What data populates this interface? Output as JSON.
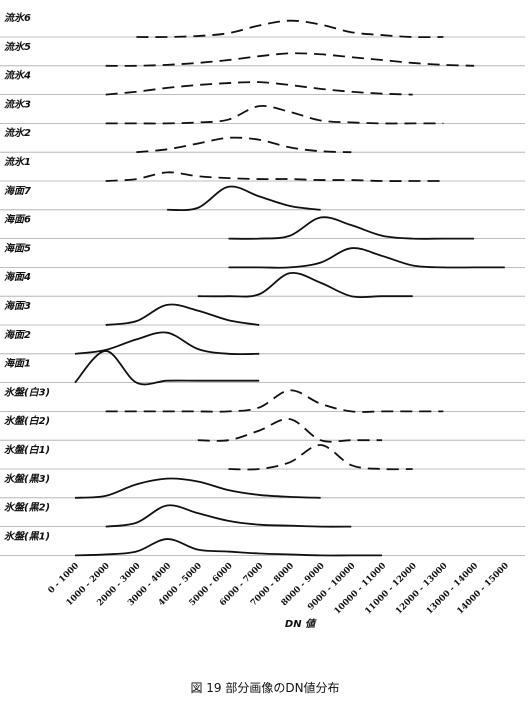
{
  "chart_data": {
    "type": "ridgeline",
    "categories": [
      "0 - 1000",
      "1000 - 2000",
      "2000 - 3000",
      "3000 - 4000",
      "4000 - 5000",
      "5000 - 6000",
      "6000 - 7000",
      "7000 - 8000",
      "8000 - 9000",
      "9000 - 10000",
      "10000 - 11000",
      "11000 - 12000",
      "12000 - 13000",
      "13000 - 14000",
      "14000 - 15000"
    ],
    "x_label": "DN 値",
    "caption": "図 19 部分画像のDN値分布",
    "ylim": [
      0,
      30
    ],
    "series": [
      {
        "name": "流氷6",
        "color": "#111111",
        "style": "dashed",
        "values": [
          null,
          null,
          0,
          0,
          1,
          4,
          12,
          17,
          13,
          5,
          2,
          0,
          0,
          null,
          null
        ]
      },
      {
        "name": "流氷5",
        "color": "#111111",
        "style": "dashed",
        "values": [
          null,
          0,
          0,
          1,
          3,
          6,
          10,
          13,
          12,
          9,
          6,
          3,
          1,
          0,
          null
        ]
      },
      {
        "name": "流氷4",
        "color": "#111111",
        "style": "dashed",
        "values": [
          null,
          0,
          3,
          7,
          10,
          12,
          13,
          10,
          6,
          3,
          1,
          0,
          null,
          null,
          null
        ]
      },
      {
        "name": "流氷3",
        "color": "#111111",
        "style": "dashed",
        "values": [
          null,
          0,
          0,
          0,
          1,
          4,
          18,
          12,
          3,
          1,
          0,
          0,
          0,
          null,
          null
        ]
      },
      {
        "name": "流氷2",
        "color": "#111111",
        "style": "dashed",
        "values": [
          null,
          null,
          0,
          3,
          9,
          15,
          13,
          5,
          1,
          0,
          null,
          null,
          null,
          null,
          null
        ]
      },
      {
        "name": "流氷1",
        "color": "#111111",
        "style": "dashed",
        "values": [
          null,
          0,
          2,
          9,
          5,
          3,
          2,
          2,
          1,
          1,
          0,
          0,
          0,
          null,
          null
        ]
      },
      {
        "name": "海面7",
        "color": "#111111",
        "style": "solid",
        "values": [
          null,
          null,
          null,
          0,
          2,
          24,
          14,
          4,
          0,
          null,
          null,
          null,
          null,
          null,
          null
        ]
      },
      {
        "name": "海面6",
        "color": "#111111",
        "style": "solid",
        "values": [
          null,
          null,
          null,
          null,
          null,
          0,
          0,
          3,
          22,
          14,
          3,
          0,
          0,
          0,
          null
        ]
      },
      {
        "name": "海面5",
        "color": "#111111",
        "style": "solid",
        "values": [
          null,
          null,
          null,
          null,
          null,
          0,
          0,
          0,
          5,
          20,
          12,
          2,
          0,
          0,
          0
        ]
      },
      {
        "name": "海面4",
        "color": "#111111",
        "style": "solid",
        "values": [
          null,
          null,
          null,
          null,
          0,
          0,
          2,
          24,
          14,
          0,
          0,
          0,
          null,
          null,
          null
        ]
      },
      {
        "name": "海面3",
        "color": "#111111",
        "style": "solid",
        "values": [
          null,
          0,
          4,
          21,
          15,
          5,
          0,
          null,
          null,
          null,
          null,
          null,
          null,
          null,
          null
        ]
      },
      {
        "name": "海面2",
        "color": "#111111",
        "style": "solid",
        "values": [
          0,
          4,
          15,
          22,
          5,
          0,
          0,
          null,
          null,
          null,
          null,
          null,
          null,
          null,
          null
        ]
      },
      {
        "name": "海面1",
        "color": "#111111",
        "style": "solid",
        "values": [
          0,
          33,
          0,
          2,
          2,
          2,
          2,
          null,
          null,
          null,
          null,
          null,
          null,
          null,
          null
        ]
      },
      {
        "name": "氷盤(白3)",
        "color": "#111111",
        "style": "dashed",
        "values": [
          null,
          0,
          0,
          0,
          0,
          0,
          4,
          22,
          8,
          0,
          0,
          0,
          0,
          null,
          null
        ]
      },
      {
        "name": "氷盤(白2)",
        "color": "#111111",
        "style": "dashed",
        "values": [
          null,
          null,
          null,
          null,
          0,
          0,
          10,
          22,
          0,
          0,
          0,
          null,
          null,
          null,
          null
        ]
      },
      {
        "name": "氷盤(白1)",
        "color": "#111111",
        "style": "dashed",
        "values": [
          null,
          null,
          null,
          null,
          null,
          0,
          0,
          7,
          25,
          4,
          0,
          0,
          null,
          null,
          null
        ]
      },
      {
        "name": "氷盤(黒3)",
        "color": "#111111",
        "style": "solid",
        "values": [
          0,
          2,
          14,
          20,
          17,
          8,
          3,
          1,
          0,
          null,
          null,
          null,
          null,
          null,
          null
        ]
      },
      {
        "name": "氷盤(黒2)",
        "color": "#111111",
        "style": "solid",
        "values": [
          null,
          0,
          4,
          22,
          14,
          6,
          2,
          1,
          0,
          0,
          null,
          null,
          null,
          null,
          null
        ]
      },
      {
        "name": "氷盤(黒1)",
        "color": "#111111",
        "style": "solid",
        "values": [
          0,
          1,
          4,
          17,
          6,
          4,
          2,
          1,
          0,
          0,
          0,
          null,
          null,
          null,
          null
        ]
      }
    ]
  }
}
